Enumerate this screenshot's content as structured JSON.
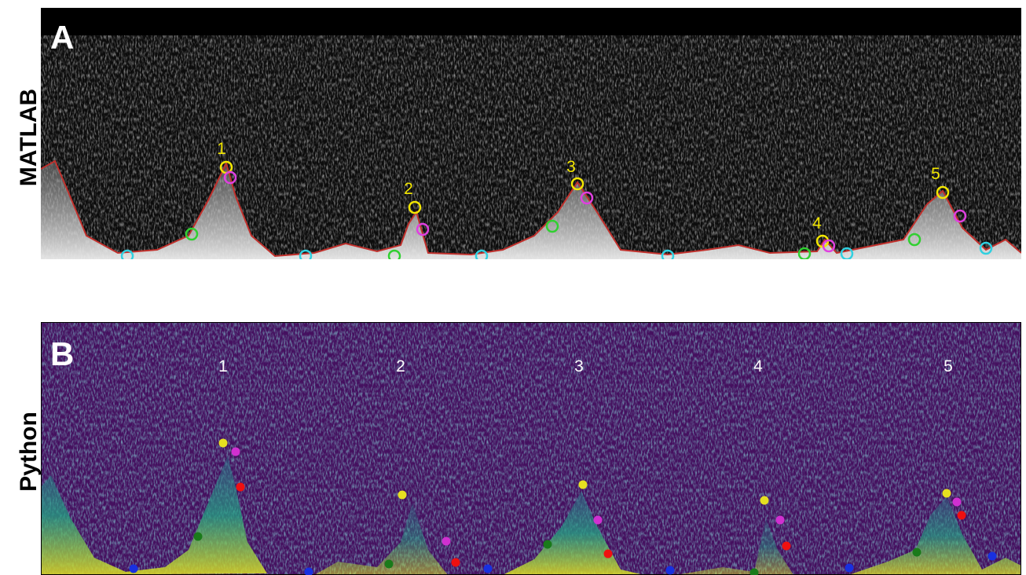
{
  "panels": [
    {
      "letter": "A",
      "side_label": "MATLAB",
      "peak_labels": [
        "1",
        "2",
        "3",
        "4",
        "5"
      ]
    },
    {
      "letter": "B",
      "side_label": "Python",
      "peak_labels": [
        "1",
        "2",
        "3",
        "4",
        "5"
      ]
    }
  ]
}
